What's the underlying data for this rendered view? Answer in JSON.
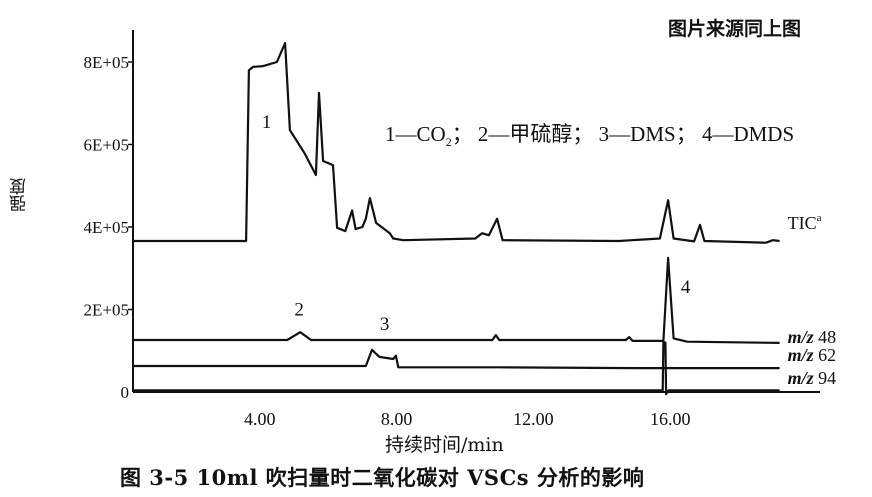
{
  "source_note": "图片来源同上图",
  "caption": "图 3-5   10ml 吹扫量时二氧化碳对 VSCs 分析的影响",
  "legend": {
    "text": "1—CO",
    "sub": "2",
    "rest": "； 2—甲硫醇； 3—DMS； 4—DMDS"
  },
  "chart_data": {
    "type": "line",
    "title": "",
    "xlabel": "持续时间/min",
    "ylabel": "强度",
    "xlim": [
      0.3,
      20.4
    ],
    "ylim": [
      0,
      870000
    ],
    "xticks": [
      4,
      8,
      12,
      16
    ],
    "xtick_labels": [
      "4.00",
      "8.00",
      "12.00",
      "16.00"
    ],
    "yticks": [
      0,
      200000,
      400000,
      600000,
      800000
    ],
    "ytick_labels": [
      "0",
      "2E+05",
      "4E+05",
      "6E+05",
      "8E+05"
    ],
    "grid": false,
    "line_color": "#111111",
    "series": [
      {
        "name": "TIC",
        "sup": "a",
        "x": [
          0.3,
          3.6,
          3.68,
          3.8,
          4.1,
          4.5,
          4.74,
          4.88,
          5.3,
          5.64,
          5.73,
          5.85,
          6.0,
          6.14,
          6.26,
          6.5,
          6.7,
          6.8,
          7.0,
          7.1,
          7.22,
          7.4,
          7.8,
          7.9,
          8.2,
          10.3,
          10.5,
          10.7,
          10.94,
          11.1,
          14.5,
          15.7,
          15.94,
          16.1,
          16.7,
          16.87,
          17.0,
          18.8,
          19.0,
          19.2
        ],
        "y": [
          366000,
          366000,
          780000,
          788000,
          790000,
          800000,
          846000,
          635000,
          580000,
          526000,
          725000,
          560000,
          555000,
          550000,
          398000,
          390000,
          440000,
          395000,
          400000,
          420000,
          470000,
          410000,
          385000,
          372000,
          368000,
          372000,
          385000,
          380000,
          420000,
          368000,
          366000,
          372000,
          465000,
          372000,
          365000,
          405000,
          366000,
          362000,
          368000,
          366000
        ]
      },
      {
        "name": "m/z 48",
        "x": [
          0.3,
          4.8,
          5.18,
          5.5,
          10.8,
          10.9,
          11.0,
          14.7,
          14.8,
          14.9,
          15.8,
          15.94,
          16.1,
          16.5,
          19.2
        ],
        "y": [
          126000,
          126000,
          145000,
          126000,
          126000,
          138000,
          126000,
          126000,
          133000,
          124000,
          124000,
          325000,
          130000,
          122000,
          119000
        ]
      },
      {
        "name": "m/z 62",
        "x": [
          0.3,
          7.1,
          7.28,
          7.5,
          7.9,
          7.98,
          8.05,
          11.0,
          15.0,
          19.2
        ],
        "y": [
          63000,
          63000,
          102000,
          85000,
          80000,
          88000,
          60000,
          60000,
          58000,
          58000
        ]
      },
      {
        "name": "m/z 94",
        "x": [
          0.3,
          15.78,
          15.8,
          15.86,
          15.88,
          15.95,
          19.2
        ],
        "y": [
          4000,
          4000,
          120000,
          120000,
          -5000,
          4000,
          4000
        ]
      }
    ],
    "peak_labels": [
      {
        "label": "1",
        "x": 4.2,
        "y": 640000
      },
      {
        "label": "2",
        "x": 5.15,
        "y": 185000
      },
      {
        "label": "3",
        "x": 7.65,
        "y": 150000
      },
      {
        "label": "4",
        "x": 16.45,
        "y": 240000
      }
    ]
  }
}
